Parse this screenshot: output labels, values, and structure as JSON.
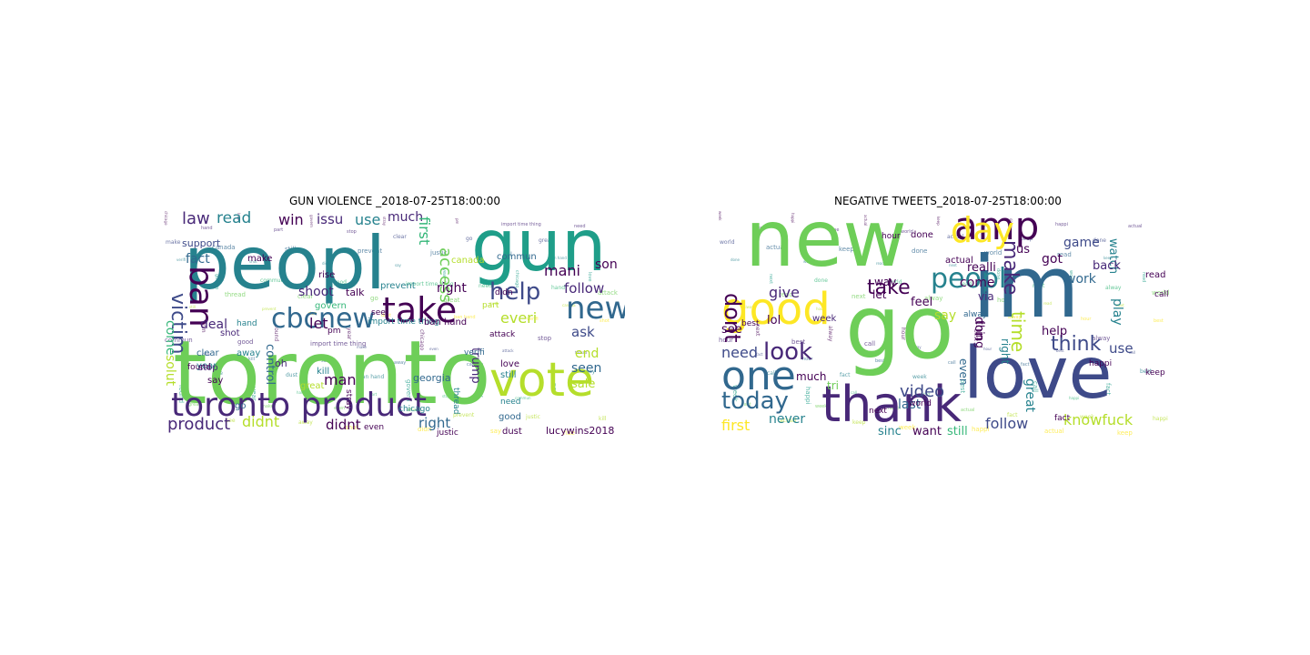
{
  "figure": {
    "left_title": "GUN VIOLENCE _2018-07-25T18:00:00",
    "right_title": "NEGATIVE TWEETS_2018-07-25T18:00:00"
  },
  "palette": [
    "#440154",
    "#482878",
    "#3e4a89",
    "#31688e",
    "#26828e",
    "#1f9e89",
    "#35b779",
    "#6ece58",
    "#b5de2b",
    "#fde725"
  ],
  "left_cloud": [
    {
      "t": "toronto",
      "s": 96,
      "c": "#6ece58"
    },
    {
      "t": "peopl",
      "s": 80,
      "c": "#26828e"
    },
    {
      "t": "gun",
      "s": 78,
      "c": "#1f9e89"
    },
    {
      "t": "vote",
      "s": 52,
      "c": "#b5de2b"
    },
    {
      "t": "toronto product",
      "s": 36,
      "c": "#482878"
    },
    {
      "t": "take",
      "s": 38,
      "c": "#440154"
    },
    {
      "t": "ban",
      "s": 36,
      "c": "#440154"
    },
    {
      "t": "cbcnew",
      "s": 30,
      "c": "#31688e"
    },
    {
      "t": "new",
      "s": 34,
      "c": "#31688e"
    },
    {
      "t": "help",
      "s": 26,
      "c": "#3e4a89"
    },
    {
      "t": "victim",
      "s": 22,
      "c": "#3e4a89"
    },
    {
      "t": "law",
      "s": 18,
      "c": "#482878"
    },
    {
      "t": "read",
      "s": 17,
      "c": "#26828e"
    },
    {
      "t": "win",
      "s": 16,
      "c": "#440154"
    },
    {
      "t": "issu",
      "s": 15,
      "c": "#482878"
    },
    {
      "t": "use",
      "s": 16,
      "c": "#26828e"
    },
    {
      "t": "much",
      "s": 14,
      "c": "#482878"
    },
    {
      "t": "access",
      "s": 18,
      "c": "#6ece58"
    },
    {
      "t": "first",
      "s": 16,
      "c": "#35b779"
    },
    {
      "t": "mani",
      "s": 16,
      "c": "#440154"
    },
    {
      "t": "son",
      "s": 14,
      "c": "#440154"
    },
    {
      "t": "follow",
      "s": 15,
      "c": "#482878"
    },
    {
      "t": "right",
      "s": 14,
      "c": "#440154"
    },
    {
      "t": "everi",
      "s": 16,
      "c": "#b5de2b"
    },
    {
      "t": "ask",
      "s": 15,
      "c": "#3e4a89"
    },
    {
      "t": "end",
      "s": 14,
      "c": "#b5de2b"
    },
    {
      "t": "seen",
      "s": 14,
      "c": "#31688e"
    },
    {
      "t": "sale",
      "s": 13,
      "c": "#b5de2b"
    },
    {
      "t": "shoot",
      "s": 14,
      "c": "#482878"
    },
    {
      "t": "let",
      "s": 16,
      "c": "#440154"
    },
    {
      "t": "deal",
      "s": 14,
      "c": "#482878"
    },
    {
      "t": "fact",
      "s": 14,
      "c": "#31688e"
    },
    {
      "t": "support",
      "s": 11,
      "c": "#3e4a89"
    },
    {
      "t": "come",
      "s": 14,
      "c": "#35b779"
    },
    {
      "t": "solut",
      "s": 14,
      "c": "#b5de2b"
    },
    {
      "t": "control",
      "s": 13,
      "c": "#31688e"
    },
    {
      "t": "man",
      "s": 16,
      "c": "#440154"
    },
    {
      "t": "trump",
      "s": 13,
      "c": "#482878"
    },
    {
      "t": "product",
      "s": 18,
      "c": "#482878"
    },
    {
      "t": "didnt",
      "s": 16,
      "c": "#b5de2b"
    },
    {
      "t": "didnt",
      "s": 15,
      "c": "#440154"
    },
    {
      "t": "right",
      "s": 15,
      "c": "#31688e"
    },
    {
      "t": "lucywins2018",
      "s": 11,
      "c": "#440154"
    },
    {
      "t": "georgia",
      "s": 11,
      "c": "#31688e"
    },
    {
      "t": "chicago",
      "s": 9,
      "c": "#26828e"
    },
    {
      "t": "canada",
      "s": 10,
      "c": "#b5de2b"
    },
    {
      "t": "commun",
      "s": 10,
      "c": "#31688e"
    },
    {
      "t": "talk",
      "s": 11,
      "c": "#440154"
    },
    {
      "t": "rise",
      "s": 10,
      "c": "#440154"
    },
    {
      "t": "make",
      "s": 10,
      "c": "#440154"
    },
    {
      "t": "govern",
      "s": 10,
      "c": "#35b779"
    },
    {
      "t": "prevent",
      "s": 10,
      "c": "#26828e"
    },
    {
      "t": "import time thing",
      "s": 9,
      "c": "#26828e"
    },
    {
      "t": "ban hand",
      "s": 10,
      "c": "#440154"
    },
    {
      "t": "attack",
      "s": 9,
      "c": "#440154"
    },
    {
      "t": "pm",
      "s": 9,
      "c": "#440154"
    },
    {
      "t": "oh",
      "s": 11,
      "c": "#482878"
    },
    {
      "t": "kill",
      "s": 10,
      "c": "#26828e"
    },
    {
      "t": "hand",
      "s": 9,
      "c": "#26828e"
    },
    {
      "t": "shot",
      "s": 10,
      "c": "#482878"
    },
    {
      "t": "clear",
      "s": 10,
      "c": "#31688e"
    },
    {
      "t": "year",
      "s": 10,
      "c": "#26828e"
    },
    {
      "t": "away",
      "s": 10,
      "c": "#26828e"
    },
    {
      "t": "stop",
      "s": 10,
      "c": "#482878"
    },
    {
      "t": "say",
      "s": 10,
      "c": "#440154"
    },
    {
      "t": "great",
      "s": 10,
      "c": "#b5de2b"
    },
    {
      "t": "love",
      "s": 10,
      "c": "#440154"
    },
    {
      "t": "still",
      "s": 10,
      "c": "#26828e"
    },
    {
      "t": "good",
      "s": 10,
      "c": "#31688e"
    },
    {
      "t": "dust",
      "s": 10,
      "c": "#440154"
    },
    {
      "t": "even",
      "s": 9,
      "c": "#440154"
    },
    {
      "t": "stray",
      "s": 9,
      "c": "#440154"
    },
    {
      "t": "justic",
      "s": 9,
      "c": "#440154"
    },
    {
      "t": "need",
      "s": 9,
      "c": "#26828e"
    },
    {
      "t": "verifi",
      "s": 9,
      "c": "#31688e"
    },
    {
      "t": "thread",
      "s": 9,
      "c": "#26828e"
    },
    {
      "t": "found",
      "s": 9,
      "c": "#440154"
    },
    {
      "t": "see",
      "s": 9,
      "c": "#440154"
    },
    {
      "t": "part",
      "s": 9,
      "c": "#b5de2b"
    },
    {
      "t": "didn",
      "s": 9,
      "c": "#440154"
    },
    {
      "t": "go",
      "s": 10,
      "c": "#31688e"
    }
  ],
  "right_cloud": [
    {
      "t": "new",
      "s": 86,
      "c": "#6ece58"
    },
    {
      "t": "im",
      "s": 94,
      "c": "#31688e"
    },
    {
      "t": "go",
      "s": 96,
      "c": "#6ece58"
    },
    {
      "t": "love",
      "s": 78,
      "c": "#3e4a89"
    },
    {
      "t": "thank",
      "s": 54,
      "c": "#482878"
    },
    {
      "t": "good",
      "s": 48,
      "c": "#fde725"
    },
    {
      "t": "one",
      "s": 44,
      "c": "#31688e"
    },
    {
      "t": "amp",
      "s": 42,
      "c": "#440154"
    },
    {
      "t": "day",
      "s": 38,
      "c": "#fde725"
    },
    {
      "t": "peopl",
      "s": 30,
      "c": "#26828e"
    },
    {
      "t": "today",
      "s": 26,
      "c": "#31688e"
    },
    {
      "t": "look",
      "s": 26,
      "c": "#482878"
    },
    {
      "t": "dont",
      "s": 24,
      "c": "#440154"
    },
    {
      "t": "take",
      "s": 22,
      "c": "#440154"
    },
    {
      "t": "make",
      "s": 22,
      "c": "#482878"
    },
    {
      "t": "think",
      "s": 22,
      "c": "#3e4a89"
    },
    {
      "t": "time",
      "s": 20,
      "c": "#b5de2b"
    },
    {
      "t": "video",
      "s": 18,
      "c": "#3e4a89"
    },
    {
      "t": "follow",
      "s": 16,
      "c": "#3e4a89"
    },
    {
      "t": "knowfuck",
      "s": 16,
      "c": "#b5de2b"
    },
    {
      "t": "give",
      "s": 16,
      "c": "#482878"
    },
    {
      "t": "need",
      "s": 16,
      "c": "#3e4a89"
    },
    {
      "t": "first",
      "s": 16,
      "c": "#fde725"
    },
    {
      "t": "never",
      "s": 14,
      "c": "#26828e"
    },
    {
      "t": "sinc",
      "s": 13,
      "c": "#26828e"
    },
    {
      "t": "want",
      "s": 13,
      "c": "#440154"
    },
    {
      "t": "still",
      "s": 13,
      "c": "#35b779"
    },
    {
      "t": "last",
      "s": 14,
      "c": "#31688e"
    },
    {
      "t": "great",
      "s": 14,
      "c": "#26828e"
    },
    {
      "t": "say",
      "s": 14,
      "c": "#b5de2b"
    },
    {
      "t": "come",
      "s": 14,
      "c": "#440154"
    },
    {
      "t": "realli",
      "s": 13,
      "c": "#440154"
    },
    {
      "t": "got",
      "s": 14,
      "c": "#440154"
    },
    {
      "t": "game",
      "s": 14,
      "c": "#3e4a89"
    },
    {
      "t": "work",
      "s": 14,
      "c": "#31688e"
    },
    {
      "t": "watch",
      "s": 13,
      "c": "#26828e"
    },
    {
      "t": "back",
      "s": 13,
      "c": "#482878"
    },
    {
      "t": "play",
      "s": 14,
      "c": "#26828e"
    },
    {
      "t": "use",
      "s": 15,
      "c": "#3e4a89"
    },
    {
      "t": "lol",
      "s": 13,
      "c": "#440154"
    },
    {
      "t": "see",
      "s": 13,
      "c": "#440154"
    },
    {
      "t": "us",
      "s": 13,
      "c": "#440154"
    },
    {
      "t": "via",
      "s": 12,
      "c": "#482878"
    },
    {
      "t": "help",
      "s": 13,
      "c": "#440154"
    },
    {
      "t": "right",
      "s": 12,
      "c": "#26828e"
    },
    {
      "t": "don",
      "s": 14,
      "c": "#440154"
    },
    {
      "t": "thing",
      "s": 12,
      "c": "#440154"
    },
    {
      "t": "even",
      "s": 12,
      "c": "#31688e"
    },
    {
      "t": "feel",
      "s": 13,
      "c": "#440154"
    },
    {
      "t": "let",
      "s": 12,
      "c": "#440154"
    },
    {
      "t": "way",
      "s": 12,
      "c": "#440154"
    },
    {
      "t": "much",
      "s": 12,
      "c": "#440154"
    },
    {
      "t": "tri",
      "s": 12,
      "c": "#6ece58"
    },
    {
      "t": "week",
      "s": 10,
      "c": "#482878"
    },
    {
      "t": "actual",
      "s": 10,
      "c": "#440154"
    },
    {
      "t": "done",
      "s": 10,
      "c": "#440154"
    },
    {
      "t": "read",
      "s": 10,
      "c": "#440154"
    },
    {
      "t": "alway",
      "s": 9,
      "c": "#31688e"
    },
    {
      "t": "best",
      "s": 9,
      "c": "#440154"
    },
    {
      "t": "fact",
      "s": 9,
      "c": "#440154"
    },
    {
      "t": "happi",
      "s": 9,
      "c": "#440154"
    },
    {
      "t": "keep",
      "s": 9,
      "c": "#440154"
    },
    {
      "t": "world",
      "s": 9,
      "c": "#440154"
    },
    {
      "t": "next",
      "s": 9,
      "c": "#440154"
    },
    {
      "t": "hour",
      "s": 9,
      "c": "#440154"
    },
    {
      "t": "call",
      "s": 9,
      "c": "#440154"
    }
  ]
}
